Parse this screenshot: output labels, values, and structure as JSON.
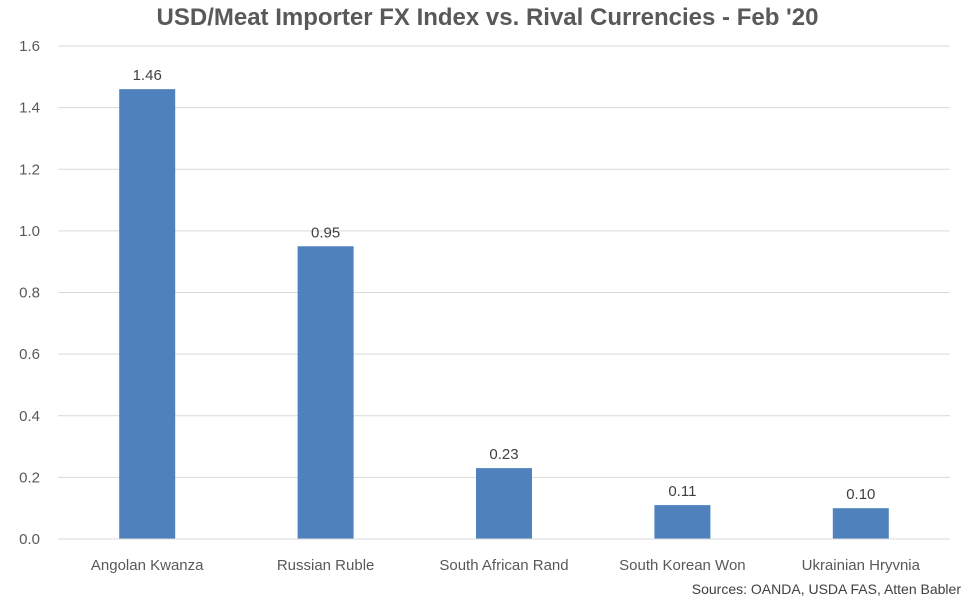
{
  "chart_data": {
    "type": "bar",
    "title": "USD/Meat Importer FX Index vs. Rival Currencies - Feb '20",
    "categories": [
      "Angolan Kwanza",
      "Russian Ruble",
      "South African Rand",
      "South Korean Won",
      "Ukrainian Hryvnia"
    ],
    "values": [
      1.46,
      0.95,
      0.23,
      0.11,
      0.1
    ],
    "value_labels": [
      "1.46",
      "0.95",
      "0.23",
      "0.11",
      "0.10"
    ],
    "xlabel": "",
    "ylabel": "",
    "ylim": [
      0,
      1.6
    ],
    "yticks": [
      0.0,
      0.2,
      0.4,
      0.6,
      0.8,
      1.0,
      1.2,
      1.4,
      1.6
    ],
    "ytick_labels": [
      "0.0",
      "0.2",
      "0.4",
      "0.6",
      "0.8",
      "1.0",
      "1.2",
      "1.4",
      "1.6"
    ],
    "grid": true,
    "legend": "none",
    "bar_color": "#4F81BD",
    "grid_color": "#D9D9D9",
    "source": "Sources: OANDA, USDA FAS, Atten Babler"
  }
}
